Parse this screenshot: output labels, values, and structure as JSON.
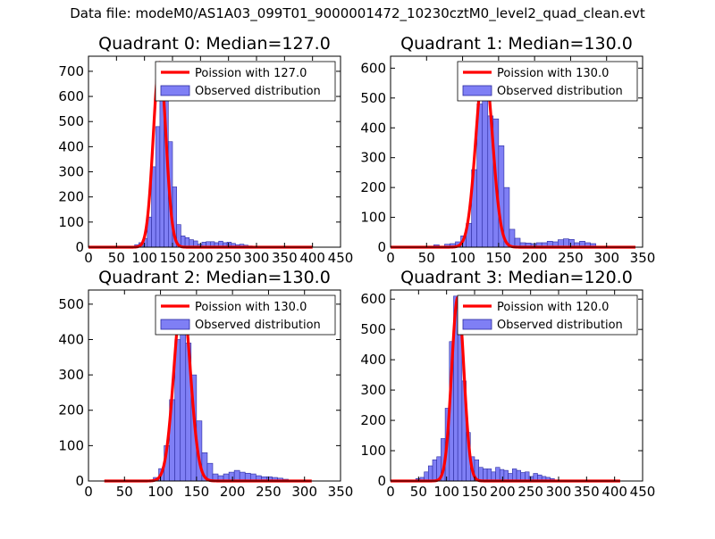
{
  "figure": {
    "suptitle": "Data file: modeM0/AS1A03_099T01_9000001472_10230cztM0_level2_quad_clean.evt"
  },
  "colors": {
    "bar_fill": "#7f7ff5",
    "bar_edge": "#2b2ba0",
    "poisson_line": "#ff0000",
    "background": "#ffffff",
    "axes": "#000000"
  },
  "chart_data": [
    {
      "type": "bar+line",
      "title": "Quadrant 0: Median=127.0",
      "xlim": [
        0,
        450
      ],
      "ylim": [
        0,
        760
      ],
      "xticks": [
        0,
        50,
        100,
        150,
        200,
        250,
        300,
        350,
        400,
        450
      ],
      "yticks": [
        0,
        100,
        200,
        300,
        400,
        500,
        600,
        700
      ],
      "legend": {
        "placement": "top-right",
        "line_label": "Poission with 127.0",
        "bar_label": "Observed distribution"
      },
      "hist": {
        "bin_width": 7.5,
        "bin_starts": [
          75,
          82.5,
          90,
          97.5,
          105,
          112.5,
          120,
          127.5,
          135,
          142.5,
          150,
          157.5,
          165,
          172.5,
          180,
          187.5,
          195,
          202.5,
          210,
          217.5,
          225,
          232.5,
          240,
          247.5,
          255,
          262.5,
          270,
          277.5,
          285
        ],
        "counts": [
          2,
          10,
          18,
          35,
          120,
          320,
          480,
          730,
          680,
          420,
          240,
          90,
          45,
          38,
          30,
          25,
          12,
          20,
          22,
          22,
          18,
          24,
          18,
          20,
          15,
          10,
          12,
          8,
          5
        ]
      },
      "poisson": {
        "mean": 127.0,
        "peak": 735,
        "x_range": [
          0,
          400
        ]
      }
    },
    {
      "type": "bar+line",
      "title": "Quadrant 1: Median=130.0",
      "xlim": [
        0,
        350
      ],
      "ylim": [
        0,
        640
      ],
      "xticks": [
        0,
        50,
        100,
        150,
        200,
        250,
        300,
        350
      ],
      "yticks": [
        0,
        100,
        200,
        300,
        400,
        500,
        600
      ],
      "legend": {
        "placement": "top-right",
        "line_label": "Poission with 130.0",
        "bar_label": "Observed distribution"
      },
      "hist": {
        "bin_width": 7.5,
        "bin_starts": [
          60,
          67.5,
          75,
          82.5,
          90,
          97.5,
          105,
          112.5,
          120,
          127.5,
          135,
          142.5,
          150,
          157.5,
          165,
          172.5,
          180,
          187.5,
          195,
          202.5,
          210,
          217.5,
          225,
          232.5,
          240,
          247.5,
          255,
          262.5,
          270,
          277.5,
          285
        ],
        "counts": [
          8,
          2,
          10,
          12,
          18,
          38,
          80,
          260,
          480,
          600,
          440,
          430,
          340,
          200,
          60,
          30,
          15,
          14,
          12,
          15,
          15,
          20,
          18,
          25,
          28,
          26,
          15,
          20,
          15,
          12,
          2
        ]
      },
      "poisson": {
        "mean": 130.0,
        "peak": 615,
        "x_range": [
          0,
          340
        ]
      }
    },
    {
      "type": "bar+line",
      "title": "Quadrant 2: Median=130.0",
      "xlim": [
        0,
        350
      ],
      "ylim": [
        0,
        540
      ],
      "xticks": [
        0,
        50,
        100,
        150,
        200,
        250,
        300,
        350
      ],
      "yticks": [
        0,
        100,
        200,
        300,
        400,
        500
      ],
      "legend": {
        "placement": "top-right",
        "line_label": "Poission with 130.0",
        "bar_label": "Observed distribution"
      },
      "hist": {
        "bin_width": 7.5,
        "bin_starts": [
          90,
          97.5,
          105,
          112.5,
          120,
          127.5,
          135,
          142.5,
          150,
          157.5,
          165,
          172.5,
          180,
          187.5,
          195,
          202.5,
          210,
          217.5,
          225,
          232.5,
          240,
          247.5,
          255,
          262.5,
          270,
          277.5
        ],
        "counts": [
          10,
          35,
          100,
          230,
          400,
          520,
          390,
          300,
          170,
          80,
          50,
          20,
          15,
          20,
          25,
          30,
          25,
          22,
          20,
          15,
          12,
          12,
          10,
          8,
          5,
          3
        ]
      },
      "poisson": {
        "mean": 130.0,
        "peak": 520,
        "x_range": [
          22,
          310
        ]
      }
    },
    {
      "type": "bar+line",
      "title": "Quadrant 3: Median=120.0",
      "xlim": [
        0,
        450
      ],
      "ylim": [
        0,
        630
      ],
      "xticks": [
        0,
        50,
        100,
        150,
        200,
        250,
        300,
        350,
        400,
        450
      ],
      "yticks": [
        0,
        100,
        200,
        300,
        400,
        500,
        600
      ],
      "legend": {
        "placement": "top-right",
        "line_label": "Poission with 120.0",
        "bar_label": "Observed distribution"
      },
      "hist": {
        "bin_width": 7.5,
        "bin_starts": [
          45,
          52.5,
          60,
          67.5,
          75,
          82.5,
          90,
          97.5,
          105,
          112.5,
          120,
          127.5,
          135,
          142.5,
          150,
          157.5,
          165,
          172.5,
          180,
          187.5,
          195,
          202.5,
          210,
          217.5,
          225,
          232.5,
          240,
          247.5,
          255,
          262.5,
          270,
          277.5,
          285
        ],
        "counts": [
          8,
          12,
          30,
          50,
          70,
          80,
          140,
          240,
          460,
          610,
          500,
          330,
          160,
          80,
          70,
          45,
          40,
          40,
          30,
          45,
          38,
          35,
          25,
          40,
          35,
          28,
          30,
          15,
          25,
          20,
          15,
          12,
          8
        ]
      },
      "poisson": {
        "mean": 120.0,
        "peak": 605,
        "x_range": [
          0,
          410
        ]
      }
    }
  ]
}
